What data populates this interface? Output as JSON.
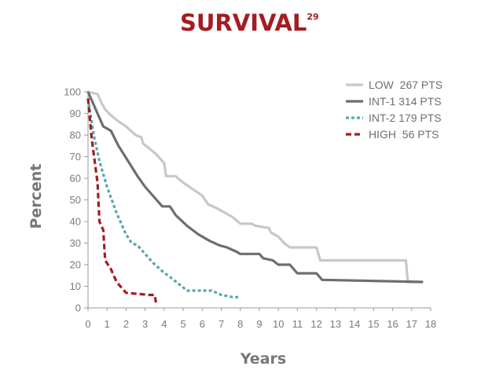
{
  "chart_data": {
    "type": "line",
    "title": "SURVIVAL",
    "title_superscript": "29",
    "xlabel": "Years",
    "ylabel": "Percent",
    "xlim": [
      0,
      18
    ],
    "ylim": [
      0,
      100
    ],
    "x_ticks": [
      0,
      1,
      2,
      3,
      4,
      5,
      6,
      7,
      8,
      9,
      10,
      11,
      12,
      13,
      14,
      15,
      16,
      17,
      18
    ],
    "y_ticks": [
      0,
      10,
      20,
      30,
      40,
      50,
      60,
      70,
      80,
      90,
      100
    ],
    "grid": false,
    "legend_position": "top-right",
    "series": [
      {
        "name": "LOW",
        "label": "LOW  267 PTS",
        "color": "#c8c8c8",
        "style": "solid",
        "points": [
          [
            0,
            100
          ],
          [
            0.5,
            99
          ],
          [
            0.7,
            95
          ],
          [
            0.9,
            92
          ],
          [
            1.1,
            90
          ],
          [
            1.5,
            87
          ],
          [
            2,
            84
          ],
          [
            2.5,
            80
          ],
          [
            2.8,
            79
          ],
          [
            2.9,
            76
          ],
          [
            3.2,
            74
          ],
          [
            3.6,
            71
          ],
          [
            4,
            67
          ],
          [
            4.1,
            61
          ],
          [
            4.6,
            61
          ],
          [
            5,
            58
          ],
          [
            5.5,
            55
          ],
          [
            6,
            52
          ],
          [
            6.3,
            48
          ],
          [
            6.8,
            46
          ],
          [
            7.2,
            44
          ],
          [
            7.6,
            42
          ],
          [
            8,
            39
          ],
          [
            8.6,
            39
          ],
          [
            8.8,
            38
          ],
          [
            9.5,
            37
          ],
          [
            9.6,
            35
          ],
          [
            10,
            33
          ],
          [
            10.3,
            30
          ],
          [
            10.6,
            28
          ],
          [
            12,
            28
          ],
          [
            12.2,
            22
          ],
          [
            16.7,
            22
          ],
          [
            16.8,
            12
          ],
          [
            17.5,
            12
          ]
        ]
      },
      {
        "name": "INT-1",
        "label": "INT-1 314 PTS",
        "color": "#6e6e6e",
        "style": "solid",
        "points": [
          [
            0,
            100
          ],
          [
            0.4,
            92
          ],
          [
            0.8,
            84
          ],
          [
            1.2,
            82
          ],
          [
            1.6,
            75
          ],
          [
            2.1,
            68
          ],
          [
            2.6,
            61
          ],
          [
            3,
            56
          ],
          [
            3.4,
            52
          ],
          [
            3.9,
            47
          ],
          [
            4.3,
            47
          ],
          [
            4.6,
            43
          ],
          [
            5.2,
            38
          ],
          [
            5.8,
            34
          ],
          [
            6.4,
            31
          ],
          [
            6.9,
            29
          ],
          [
            7.3,
            28
          ],
          [
            7.8,
            26
          ],
          [
            8,
            25
          ],
          [
            9,
            25
          ],
          [
            9.2,
            23
          ],
          [
            9.7,
            22
          ],
          [
            10,
            20
          ],
          [
            10.6,
            20
          ],
          [
            11,
            16
          ],
          [
            12,
            16
          ],
          [
            12.3,
            13
          ],
          [
            17.6,
            12
          ]
        ]
      },
      {
        "name": "INT-2",
        "label": "INT-2 179 PTS",
        "color": "#5ba7b0",
        "style": "dotted",
        "points": [
          [
            0,
            97
          ],
          [
            0.3,
            80
          ],
          [
            0.6,
            68
          ],
          [
            1,
            56
          ],
          [
            1.5,
            44
          ],
          [
            2,
            34
          ],
          [
            2.3,
            30
          ],
          [
            2.6,
            29
          ],
          [
            2.9,
            26
          ],
          [
            3.4,
            21
          ],
          [
            3.9,
            17
          ],
          [
            4.5,
            13
          ],
          [
            5.2,
            8
          ],
          [
            6.5,
            8
          ],
          [
            7,
            6
          ],
          [
            7.6,
            5
          ],
          [
            8,
            5
          ]
        ]
      },
      {
        "name": "HIGH",
        "label": "HIGH  56 PTS",
        "color": "#a41c22",
        "style": "dashed",
        "points": [
          [
            0,
            97
          ],
          [
            0.2,
            78
          ],
          [
            0.5,
            58
          ],
          [
            0.6,
            40
          ],
          [
            0.8,
            36
          ],
          [
            0.9,
            22
          ],
          [
            1.2,
            18
          ],
          [
            1.5,
            12
          ],
          [
            2,
            7
          ],
          [
            3.2,
            6
          ],
          [
            3.5,
            6
          ],
          [
            3.6,
            1
          ]
        ]
      }
    ]
  }
}
